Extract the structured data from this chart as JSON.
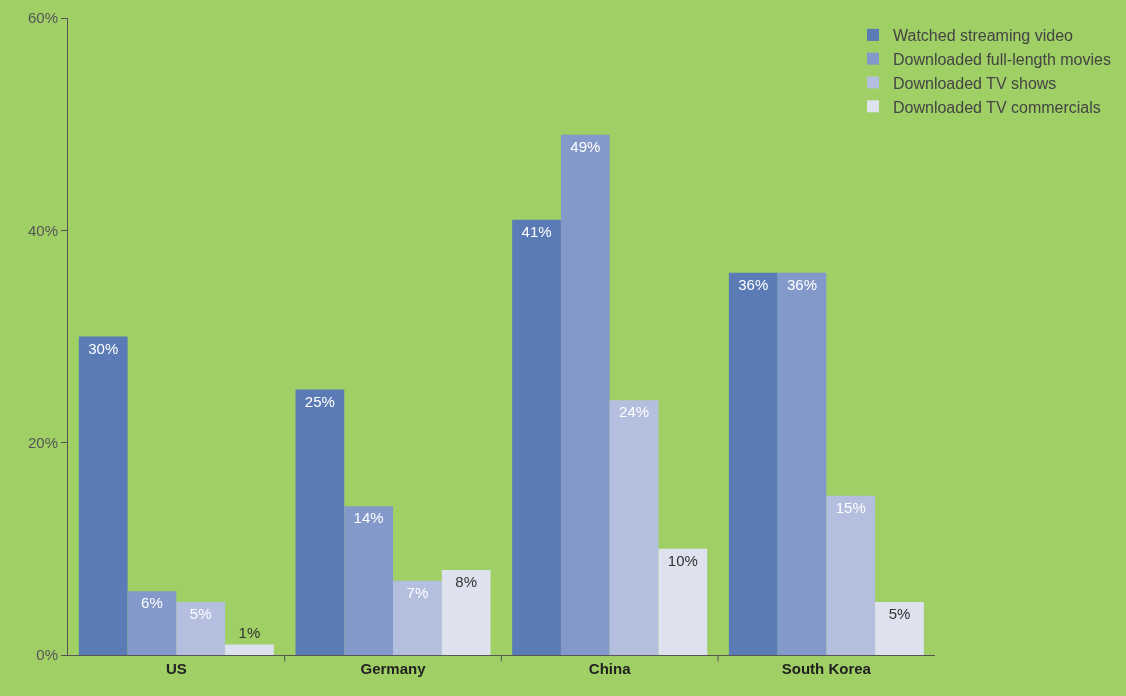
{
  "chart_data": {
    "type": "bar",
    "categories": [
      "US",
      "Germany",
      "China",
      "South Korea"
    ],
    "series": [
      {
        "name": "Watched streaming video",
        "color": "#5a7bb5",
        "values": [
          30,
          25,
          41,
          36
        ],
        "value_labels": [
          "30%",
          "25%",
          "41%",
          "36%"
        ]
      },
      {
        "name": "Downloaded full-length movies",
        "color": "#8399c9",
        "values": [
          6,
          14,
          49,
          36
        ],
        "value_labels": [
          "6%",
          "14%",
          "49%",
          "36%"
        ]
      },
      {
        "name": "Downloaded TV shows",
        "color": "#b4bedf",
        "values": [
          5,
          7,
          24,
          15
        ],
        "value_labels": [
          "5%",
          "7%",
          "24%",
          "15%"
        ]
      },
      {
        "name": "Downloaded TV commercials",
        "color": "#dee2ee",
        "values": [
          1,
          8,
          10,
          5
        ],
        "value_labels": [
          "1%",
          "8%",
          "10%",
          "5%"
        ]
      }
    ],
    "ylim": [
      0,
      60
    ],
    "yticks": [
      {
        "value": 0,
        "label": "0%"
      },
      {
        "value": 20,
        "label": "20%"
      },
      {
        "value": 40,
        "label": "40%"
      },
      {
        "value": 60,
        "label": "60%"
      }
    ],
    "grid": false,
    "legend": "top right"
  }
}
